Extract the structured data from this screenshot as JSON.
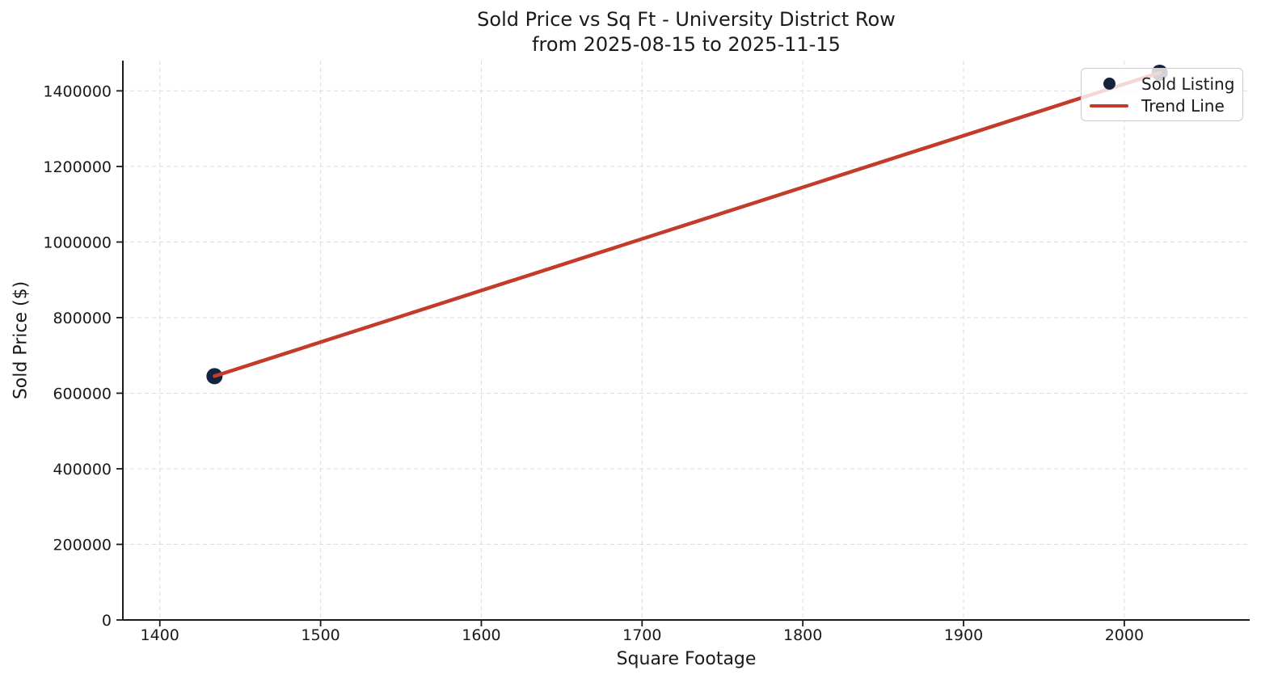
{
  "title": {
    "line1": "Sold Price vs Sq Ft - University District Row",
    "line2": "from 2025-08-15 to 2025-11-15"
  },
  "chart_data": {
    "type": "scatter",
    "title": "Sold Price vs Sq Ft - University District Row from 2025-08-15 to 2025-11-15",
    "title_lines": [
      "Sold Price vs Sq Ft - University District Row",
      "from 2025-08-15 to 2025-11-15"
    ],
    "xlabel": "Square Footage",
    "ylabel": "Sold Price ($)",
    "xlim": [
      1377,
      2078
    ],
    "ylim": [
      0,
      1480000
    ],
    "x_ticks": [
      1400,
      1500,
      1600,
      1700,
      1800,
      1900,
      2000
    ],
    "y_ticks": [
      0,
      200000,
      400000,
      600000,
      800000,
      1000000,
      1200000,
      1400000
    ],
    "grid": true,
    "legend_position": "upper right",
    "series": [
      {
        "name": "Sold Listing",
        "type": "scatter",
        "color": "#15233f",
        "x": [
          1434,
          2022
        ],
        "y": [
          645000,
          1448000
        ]
      },
      {
        "name": "Trend Line",
        "type": "line",
        "color": "#c23b2b",
        "x": [
          1434,
          2022
        ],
        "y": [
          645000,
          1448000
        ]
      }
    ]
  },
  "colors": {
    "marker": "#15233f",
    "trend_line": "#c23b2b",
    "grid": "#dcdcdc",
    "spine": "#1a1a1a",
    "text": "#1a1a1a",
    "legend_border": "#cccccc",
    "background": "#ffffff"
  }
}
